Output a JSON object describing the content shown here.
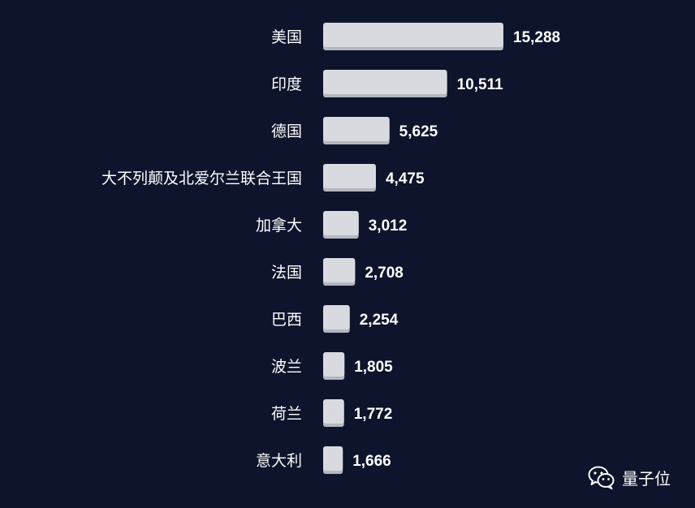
{
  "chart_data": {
    "type": "bar",
    "orientation": "horizontal",
    "title": "",
    "xlabel": "",
    "ylabel": "",
    "categories": [
      "美国",
      "印度",
      "德国",
      "大不列颠及北爱尔兰联合王国",
      "加拿大",
      "法国",
      "巴西",
      "波兰",
      "荷兰",
      "意大利"
    ],
    "values": [
      15288,
      10511,
      5625,
      4475,
      3012,
      2708,
      2254,
      1805,
      1772,
      1666
    ],
    "value_labels": [
      "15,288",
      "10,511",
      "5,625",
      "4,475",
      "3,012",
      "2,708",
      "2,254",
      "1,805",
      "1,772",
      "1,666"
    ],
    "xlim": [
      0,
      15288
    ],
    "grid": false,
    "legend": "none"
  },
  "colors": {
    "background": "#0e142b",
    "bar": "#d8dadf",
    "bar_shadow": "#b4b7bf",
    "text": "#ffffff"
  },
  "watermark": {
    "icon": "wechat-icon",
    "text": "量子位"
  }
}
